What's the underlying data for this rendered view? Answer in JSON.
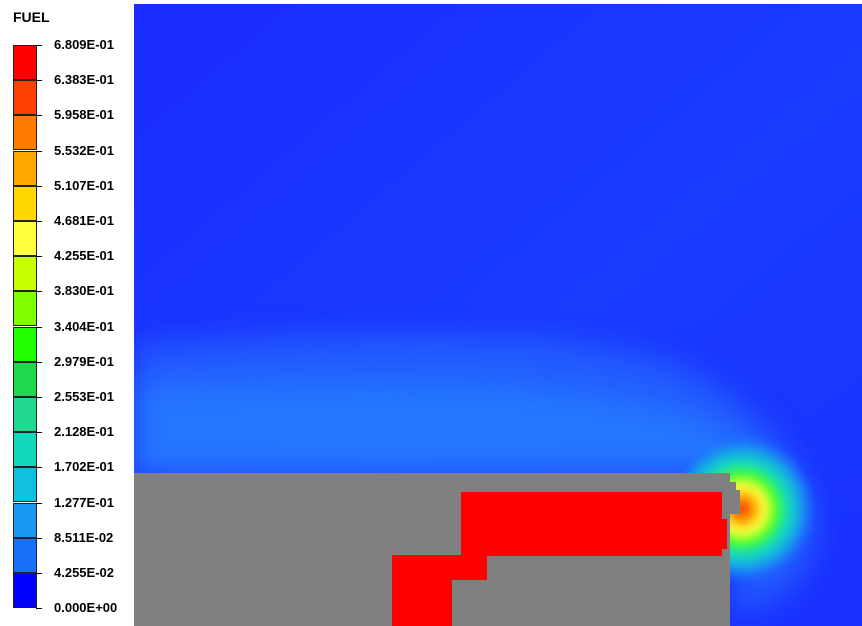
{
  "legend": {
    "title": "FUEL",
    "entries": [
      {
        "label": "6.809E-01",
        "color": "#ff0000"
      },
      {
        "label": "6.383E-01",
        "color": "#ff4000"
      },
      {
        "label": "5.958E-01",
        "color": "#ff7a00"
      },
      {
        "label": "5.532E-01",
        "color": "#ffa800"
      },
      {
        "label": "5.107E-01",
        "color": "#ffd800"
      },
      {
        "label": "4.681E-01",
        "color": "#ffff40"
      },
      {
        "label": "4.255E-01",
        "color": "#c8ff00"
      },
      {
        "label": "3.830E-01",
        "color": "#80ff00"
      },
      {
        "label": "3.404E-01",
        "color": "#20ff00"
      },
      {
        "label": "2.979E-01",
        "color": "#20d850"
      },
      {
        "label": "2.553E-01",
        "color": "#20d890"
      },
      {
        "label": "2.128E-01",
        "color": "#10d8b8"
      },
      {
        "label": "1.702E-01",
        "color": "#10c0e0"
      },
      {
        "label": "1.277E-01",
        "color": "#1898f0"
      },
      {
        "label": "8.511E-02",
        "color": "#1870f8"
      },
      {
        "label": "4.255E-02",
        "color": "#2030ff"
      },
      {
        "label": "0.000E+00",
        "color": "#0000ff"
      }
    ]
  },
  "colors": {
    "background_field": "#1a2cff",
    "solid_body": "#808080",
    "fuel_core": "#ff0000"
  }
}
